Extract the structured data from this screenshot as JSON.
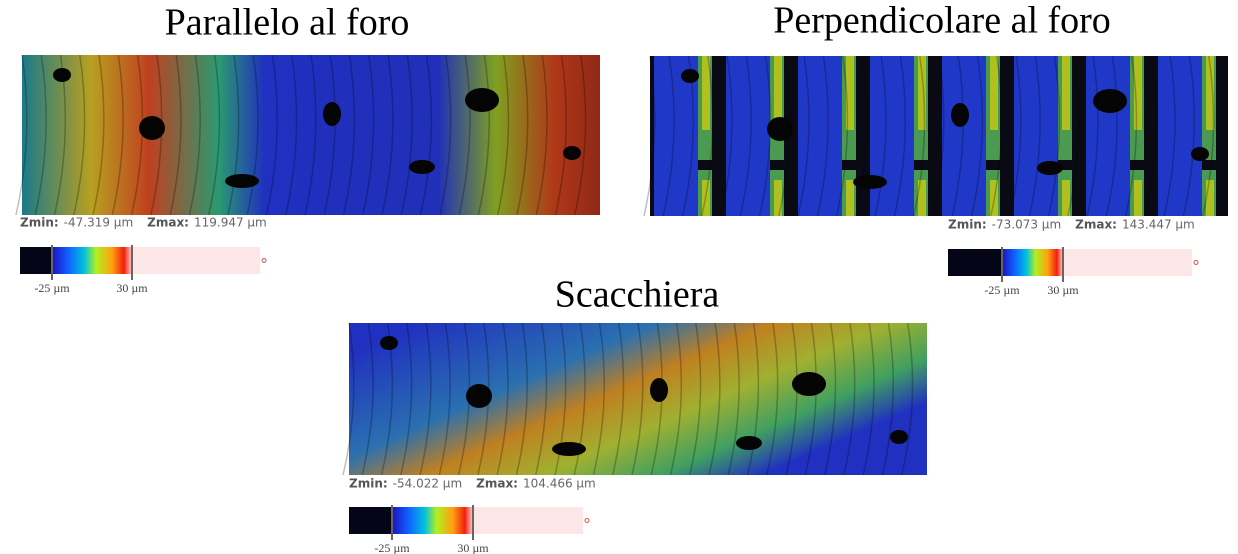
{
  "panels": [
    {
      "title": "Parallelo al foro",
      "zmin_label": "Zmin:",
      "zmin_value": "-47.319 µm",
      "zmax_label": "Zmax:",
      "zmax_value": "119.947 µm",
      "scale_ticks": [
        "-25 µm",
        "30 µm"
      ]
    },
    {
      "title": "Perpendicolare al foro",
      "zmin_label": "Zmin:",
      "zmin_value": "-73.073 µm",
      "zmax_label": "Zmax:",
      "zmax_value": "143.447 µm",
      "scale_ticks": [
        "-25 µm",
        "30 µm"
      ]
    },
    {
      "title": "Scacchiera",
      "zmin_label": "Zmin:",
      "zmin_value": "-54.022 µm",
      "zmax_label": "Zmax:",
      "zmax_value": "104.466 µm",
      "scale_ticks": [
        "-25 µm",
        "30 µm"
      ]
    }
  ]
}
